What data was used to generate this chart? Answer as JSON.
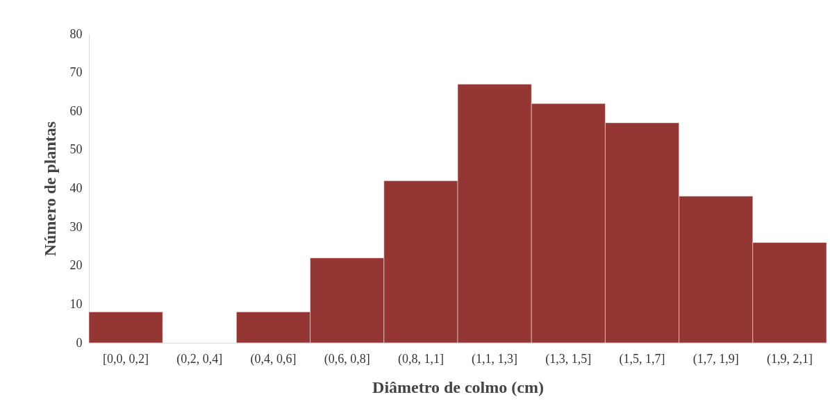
{
  "chart_data": {
    "type": "bar",
    "xlabel": "Diâmetro de colmo (cm)",
    "ylabel": "Número de plantas",
    "categories": [
      "[0,0, 0,2]",
      "(0,2, 0,4]",
      "(0,4, 0,6]",
      "(0,6, 0,8]",
      "(0,8, 1,1]",
      "(1,1, 1,3]",
      "(1,3, 1,5]",
      "(1,5, 1,7]",
      "(1,7, 1,9]",
      "(1,9, 2,1]"
    ],
    "values": [
      8,
      0,
      8,
      22,
      42,
      67,
      62,
      57,
      38,
      26
    ],
    "color": "#943634",
    "ylim": [
      0,
      80
    ],
    "yticks": [
      0,
      10,
      20,
      30,
      40,
      50,
      60,
      70,
      80
    ],
    "grid": false
  }
}
